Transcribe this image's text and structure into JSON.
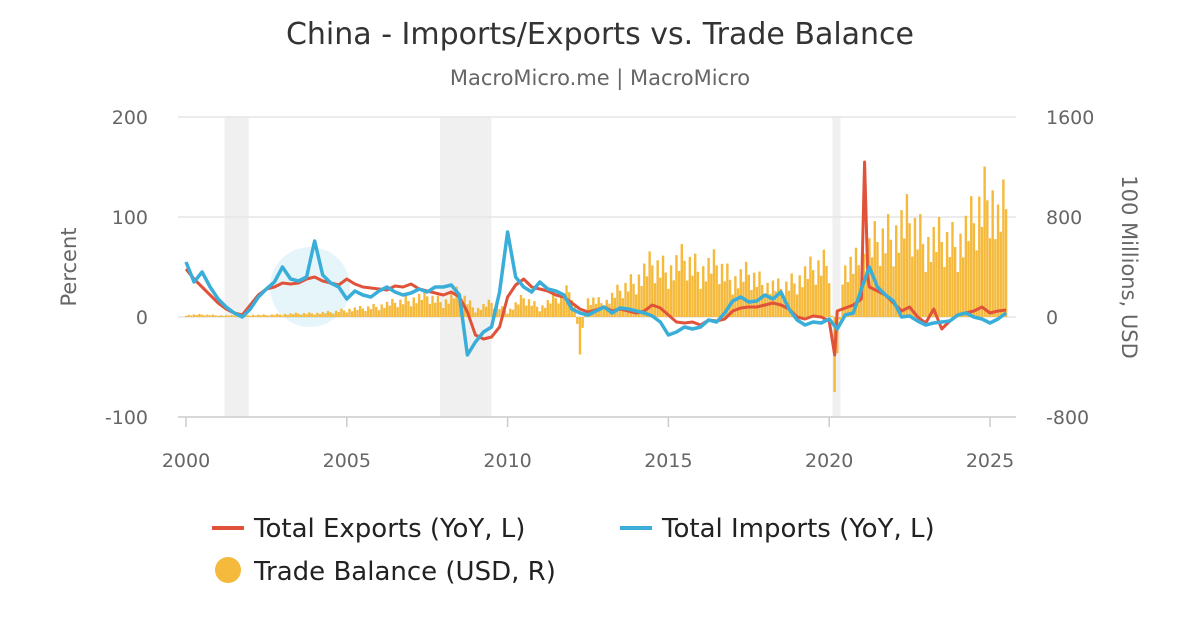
{
  "chart_data": {
    "type": "line",
    "title": "China - Imports/Exports vs. Trade Balance",
    "subtitle": "MacroMicro.me | MacroMicro",
    "ylabel_left": "Percent",
    "ylabel_right": "100 Millions, USD",
    "ylim_left": [
      -100,
      200
    ],
    "ylim_right": [
      -800,
      1600
    ],
    "yticks_left": [
      "200",
      "100",
      "0",
      "-100"
    ],
    "yticks_right": [
      "1600",
      "800",
      "0",
      "-800"
    ],
    "xticks": [
      "2000",
      "2005",
      "2010",
      "2015",
      "2020",
      "2025"
    ],
    "xlim": [
      2000,
      2025.8
    ],
    "grid": true,
    "legend_position": "bottom",
    "shaded_periods": [
      [
        2001.2,
        2001.95
      ],
      [
        2007.9,
        2009.5
      ],
      [
        2020.1,
        2020.35
      ]
    ],
    "colors": {
      "exports": "#e0533a",
      "imports": "#3aaed8",
      "balance": "#f5b93b",
      "grid": "#e6e6e6",
      "shade": "#f0f0f0"
    },
    "series": [
      {
        "name": "Total Exports (YoY, L)",
        "key": "exports",
        "x": [
          2000.0,
          2000.25,
          2000.5,
          2000.75,
          2001.0,
          2001.25,
          2001.5,
          2001.75,
          2002.0,
          2002.25,
          2002.5,
          2002.75,
          2003.0,
          2003.25,
          2003.5,
          2003.75,
          2004.0,
          2004.25,
          2004.5,
          2004.75,
          2005.0,
          2005.25,
          2005.5,
          2005.75,
          2006.0,
          2006.25,
          2006.5,
          2006.75,
          2007.0,
          2007.25,
          2007.5,
          2007.75,
          2008.0,
          2008.25,
          2008.5,
          2008.75,
          2009.0,
          2009.25,
          2009.5,
          2009.75,
          2010.0,
          2010.25,
          2010.5,
          2010.75,
          2011.0,
          2011.25,
          2011.5,
          2011.75,
          2012.0,
          2012.25,
          2012.5,
          2012.75,
          2013.0,
          2013.25,
          2013.5,
          2013.75,
          2014.0,
          2014.25,
          2014.5,
          2014.75,
          2015.0,
          2015.25,
          2015.5,
          2015.75,
          2016.0,
          2016.25,
          2016.5,
          2016.75,
          2017.0,
          2017.25,
          2017.5,
          2017.75,
          2018.0,
          2018.25,
          2018.5,
          2018.75,
          2019.0,
          2019.25,
          2019.5,
          2019.75,
          2020.0,
          2020.17,
          2020.25,
          2020.5,
          2020.75,
          2021.0,
          2021.1,
          2021.2,
          2021.25,
          2021.5,
          2021.75,
          2022.0,
          2022.25,
          2022.5,
          2022.75,
          2023.0,
          2023.25,
          2023.5,
          2023.75,
          2024.0,
          2024.25,
          2024.5,
          2024.75,
          2025.0,
          2025.25,
          2025.5
        ],
        "values": [
          48,
          38,
          30,
          22,
          14,
          8,
          4,
          2,
          12,
          22,
          28,
          30,
          34,
          33,
          34,
          38,
          40,
          36,
          34,
          32,
          38,
          33,
          30,
          29,
          28,
          27,
          31,
          30,
          33,
          28,
          26,
          24,
          22,
          25,
          20,
          5,
          -18,
          -22,
          -20,
          -10,
          20,
          32,
          38,
          30,
          28,
          26,
          22,
          20,
          14,
          8,
          5,
          7,
          10,
          6,
          8,
          6,
          4,
          6,
          12,
          9,
          2,
          -5,
          -6,
          -5,
          -8,
          -3,
          -4,
          -2,
          6,
          9,
          10,
          10,
          12,
          14,
          12,
          8,
          0,
          -2,
          1,
          0,
          -4,
          -38,
          6,
          9,
          12,
          18,
          155,
          40,
          30,
          26,
          22,
          14,
          6,
          10,
          0,
          -6,
          8,
          -12,
          -4,
          2,
          4,
          6,
          10,
          4,
          6,
          7
        ]
      },
      {
        "name": "Total Imports (YoY, L)",
        "key": "imports",
        "x": [
          2000.0,
          2000.25,
          2000.5,
          2000.75,
          2001.0,
          2001.25,
          2001.5,
          2001.75,
          2002.0,
          2002.25,
          2002.5,
          2002.75,
          2003.0,
          2003.25,
          2003.5,
          2003.75,
          2004.0,
          2004.25,
          2004.5,
          2004.75,
          2005.0,
          2005.25,
          2005.5,
          2005.75,
          2006.0,
          2006.25,
          2006.5,
          2006.75,
          2007.0,
          2007.25,
          2007.5,
          2007.75,
          2008.0,
          2008.25,
          2008.5,
          2008.75,
          2009.0,
          2009.25,
          2009.5,
          2009.75,
          2010.0,
          2010.25,
          2010.5,
          2010.75,
          2011.0,
          2011.25,
          2011.5,
          2011.75,
          2012.0,
          2012.25,
          2012.5,
          2012.75,
          2013.0,
          2013.25,
          2013.5,
          2013.75,
          2014.0,
          2014.25,
          2014.5,
          2014.75,
          2015.0,
          2015.25,
          2015.5,
          2015.75,
          2016.0,
          2016.25,
          2016.5,
          2016.75,
          2017.0,
          2017.25,
          2017.5,
          2017.75,
          2018.0,
          2018.25,
          2018.5,
          2018.75,
          2019.0,
          2019.25,
          2019.5,
          2019.75,
          2020.0,
          2020.25,
          2020.5,
          2020.75,
          2021.0,
          2021.25,
          2021.5,
          2021.75,
          2022.0,
          2022.25,
          2022.5,
          2022.75,
          2023.0,
          2023.25,
          2023.5,
          2023.75,
          2024.0,
          2024.25,
          2024.5,
          2024.75,
          2025.0,
          2025.25,
          2025.5
        ],
        "values": [
          55,
          35,
          45,
          30,
          18,
          10,
          4,
          0,
          8,
          20,
          28,
          35,
          50,
          38,
          36,
          40,
          76,
          42,
          34,
          30,
          18,
          26,
          22,
          20,
          26,
          30,
          25,
          22,
          24,
          28,
          25,
          30,
          30,
          32,
          22,
          -38,
          -25,
          -15,
          -10,
          25,
          85,
          40,
          30,
          25,
          35,
          28,
          26,
          22,
          8,
          4,
          2,
          6,
          10,
          4,
          9,
          8,
          6,
          4,
          1,
          -5,
          -18,
          -15,
          -10,
          -12,
          -10,
          -3,
          -5,
          4,
          16,
          20,
          15,
          16,
          22,
          18,
          25,
          8,
          -3,
          -8,
          -5,
          -6,
          -2,
          -12,
          2,
          4,
          28,
          50,
          30,
          22,
          16,
          0,
          1,
          -4,
          -8,
          -6,
          -5,
          -4,
          2,
          4,
          0,
          -2,
          -6,
          -2,
          4
        ]
      },
      {
        "name": "Trade Balance (USD, R)",
        "key": "balance",
        "x": [
          2000.0,
          2000.5,
          2001.0,
          2001.5,
          2002.0,
          2002.5,
          2003.0,
          2003.5,
          2004.0,
          2004.5,
          2005.0,
          2005.5,
          2006.0,
          2006.5,
          2007.0,
          2007.5,
          2008.0,
          2008.5,
          2009.0,
          2009.5,
          2010.0,
          2010.5,
          2011.0,
          2011.5,
          2012.0,
          2012.25,
          2012.5,
          2013.0,
          2013.5,
          2014.0,
          2014.5,
          2015.0,
          2015.5,
          2016.0,
          2016.5,
          2017.0,
          2017.5,
          2018.0,
          2018.5,
          2019.0,
          2019.5,
          2020.0,
          2020.17,
          2020.5,
          2021.0,
          2021.5,
          2022.0,
          2022.5,
          2023.0,
          2023.5,
          2024.0,
          2024.5,
          2025.0,
          2025.25,
          2025.5
        ],
        "values": [
          20,
          25,
          18,
          15,
          22,
          20,
          30,
          35,
          40,
          50,
          80,
          90,
          120,
          150,
          190,
          220,
          160,
          260,
          80,
          150,
          60,
          200,
          100,
          200,
          300,
          -300,
          200,
          150,
          280,
          400,
          550,
          500,
          600,
          500,
          550,
          400,
          450,
          350,
          300,
          400,
          500,
          600,
          -600,
          550,
          600,
          800,
          900,
          1000,
          800,
          800,
          800,
          1000,
          1400,
          1000,
          1150
        ]
      }
    ]
  }
}
